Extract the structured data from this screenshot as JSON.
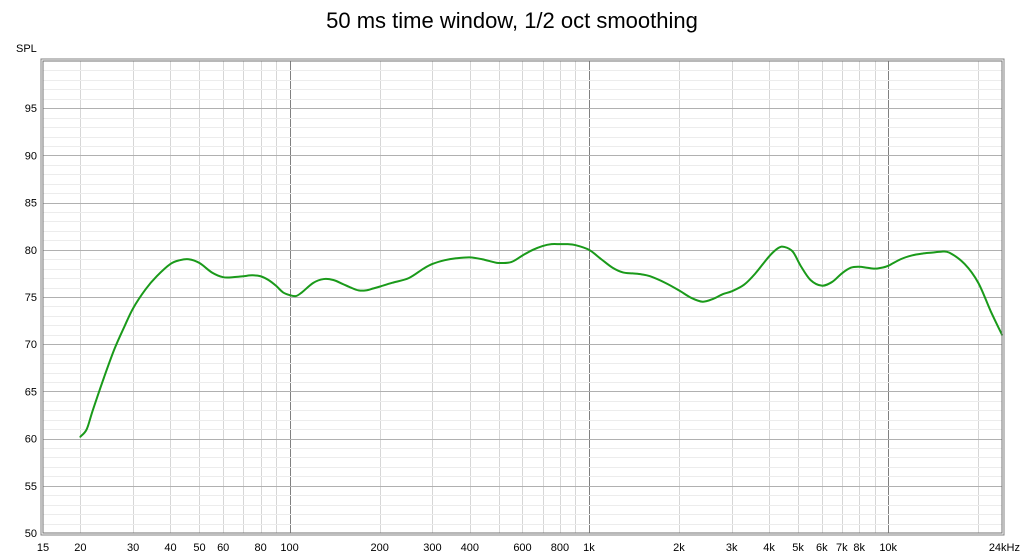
{
  "chart_data": {
    "type": "line",
    "title": "50 ms time window, 1/2 oct smoothing",
    "ylabel": "SPL",
    "xlabel": "",
    "x_scale": "log",
    "xlim": [
      15,
      24000
    ],
    "ylim": [
      50,
      100
    ],
    "grid": true,
    "x_ticks": [
      {
        "value": 15,
        "label": "15"
      },
      {
        "value": 20,
        "label": "20"
      },
      {
        "value": 30,
        "label": "30"
      },
      {
        "value": 40,
        "label": "40"
      },
      {
        "value": 50,
        "label": "50"
      },
      {
        "value": 60,
        "label": "60"
      },
      {
        "value": 80,
        "label": "80"
      },
      {
        "value": 100,
        "label": "100"
      },
      {
        "value": 200,
        "label": "200"
      },
      {
        "value": 300,
        "label": "300"
      },
      {
        "value": 400,
        "label": "400"
      },
      {
        "value": 600,
        "label": "600"
      },
      {
        "value": 800,
        "label": "800"
      },
      {
        "value": 1000,
        "label": "1k"
      },
      {
        "value": 2000,
        "label": "2k"
      },
      {
        "value": 3000,
        "label": "3k"
      },
      {
        "value": 4000,
        "label": "4k"
      },
      {
        "value": 5000,
        "label": "5k"
      },
      {
        "value": 6000,
        "label": "6k"
      },
      {
        "value": 7000,
        "label": "7k"
      },
      {
        "value": 8000,
        "label": "8k"
      },
      {
        "value": 10000,
        "label": "10k"
      },
      {
        "value": 24000,
        "label": "24kHz"
      }
    ],
    "y_ticks": [
      {
        "value": 50,
        "label": "50"
      },
      {
        "value": 55,
        "label": "55"
      },
      {
        "value": 60,
        "label": "60"
      },
      {
        "value": 65,
        "label": "65"
      },
      {
        "value": 70,
        "label": "70"
      },
      {
        "value": 75,
        "label": "75"
      },
      {
        "value": 80,
        "label": "80"
      },
      {
        "value": 85,
        "label": "85"
      },
      {
        "value": 90,
        "label": "90"
      },
      {
        "value": 95,
        "label": "95"
      }
    ],
    "series": [
      {
        "color": "#1a9a1a",
        "x": [
          20,
          21,
          22,
          24,
          26,
          28,
          30,
          33,
          36,
          40,
          43,
          46,
          50,
          55,
          60,
          65,
          70,
          75,
          80,
          85,
          90,
          95,
          100,
          105,
          110,
          120,
          130,
          140,
          150,
          160,
          170,
          180,
          190,
          200,
          220,
          250,
          280,
          300,
          330,
          360,
          400,
          440,
          480,
          500,
          550,
          600,
          650,
          700,
          750,
          800,
          850,
          900,
          1000,
          1100,
          1200,
          1300,
          1400,
          1500,
          1600,
          1800,
          2000,
          2200,
          2400,
          2600,
          2800,
          3000,
          3300,
          3600,
          4000,
          4300,
          4500,
          4800,
          5100,
          5500,
          6000,
          6500,
          7000,
          7500,
          8000,
          8500,
          9000,
          9500,
          10000,
          11000,
          12000,
          13000,
          14000,
          15000,
          16000,
          18000,
          20000,
          22000,
          24000
        ],
        "y": [
          60.2,
          61,
          63,
          66.5,
          69.5,
          71.8,
          73.8,
          75.8,
          77.2,
          78.5,
          78.9,
          79,
          78.6,
          77.6,
          77.1,
          77.1,
          77.2,
          77.3,
          77.2,
          76.8,
          76.2,
          75.5,
          75.2,
          75.1,
          75.5,
          76.5,
          76.9,
          76.8,
          76.4,
          76,
          75.7,
          75.7,
          75.9,
          76.1,
          76.5,
          77,
          78,
          78.5,
          78.9,
          79.1,
          79.2,
          79,
          78.7,
          78.6,
          78.7,
          79.4,
          80,
          80.4,
          80.6,
          80.6,
          80.6,
          80.5,
          80,
          79,
          78.1,
          77.6,
          77.5,
          77.4,
          77.2,
          76.5,
          75.7,
          74.9,
          74.5,
          74.8,
          75.3,
          75.6,
          76.3,
          77.5,
          79.3,
          80.2,
          80.3,
          79.8,
          78.3,
          76.8,
          76.2,
          76.6,
          77.5,
          78.1,
          78.2,
          78.1,
          78.0,
          78.1,
          78.3,
          79,
          79.4,
          79.6,
          79.7,
          79.8,
          79.7,
          78.5,
          76.5,
          73.5,
          71
        ]
      }
    ]
  }
}
